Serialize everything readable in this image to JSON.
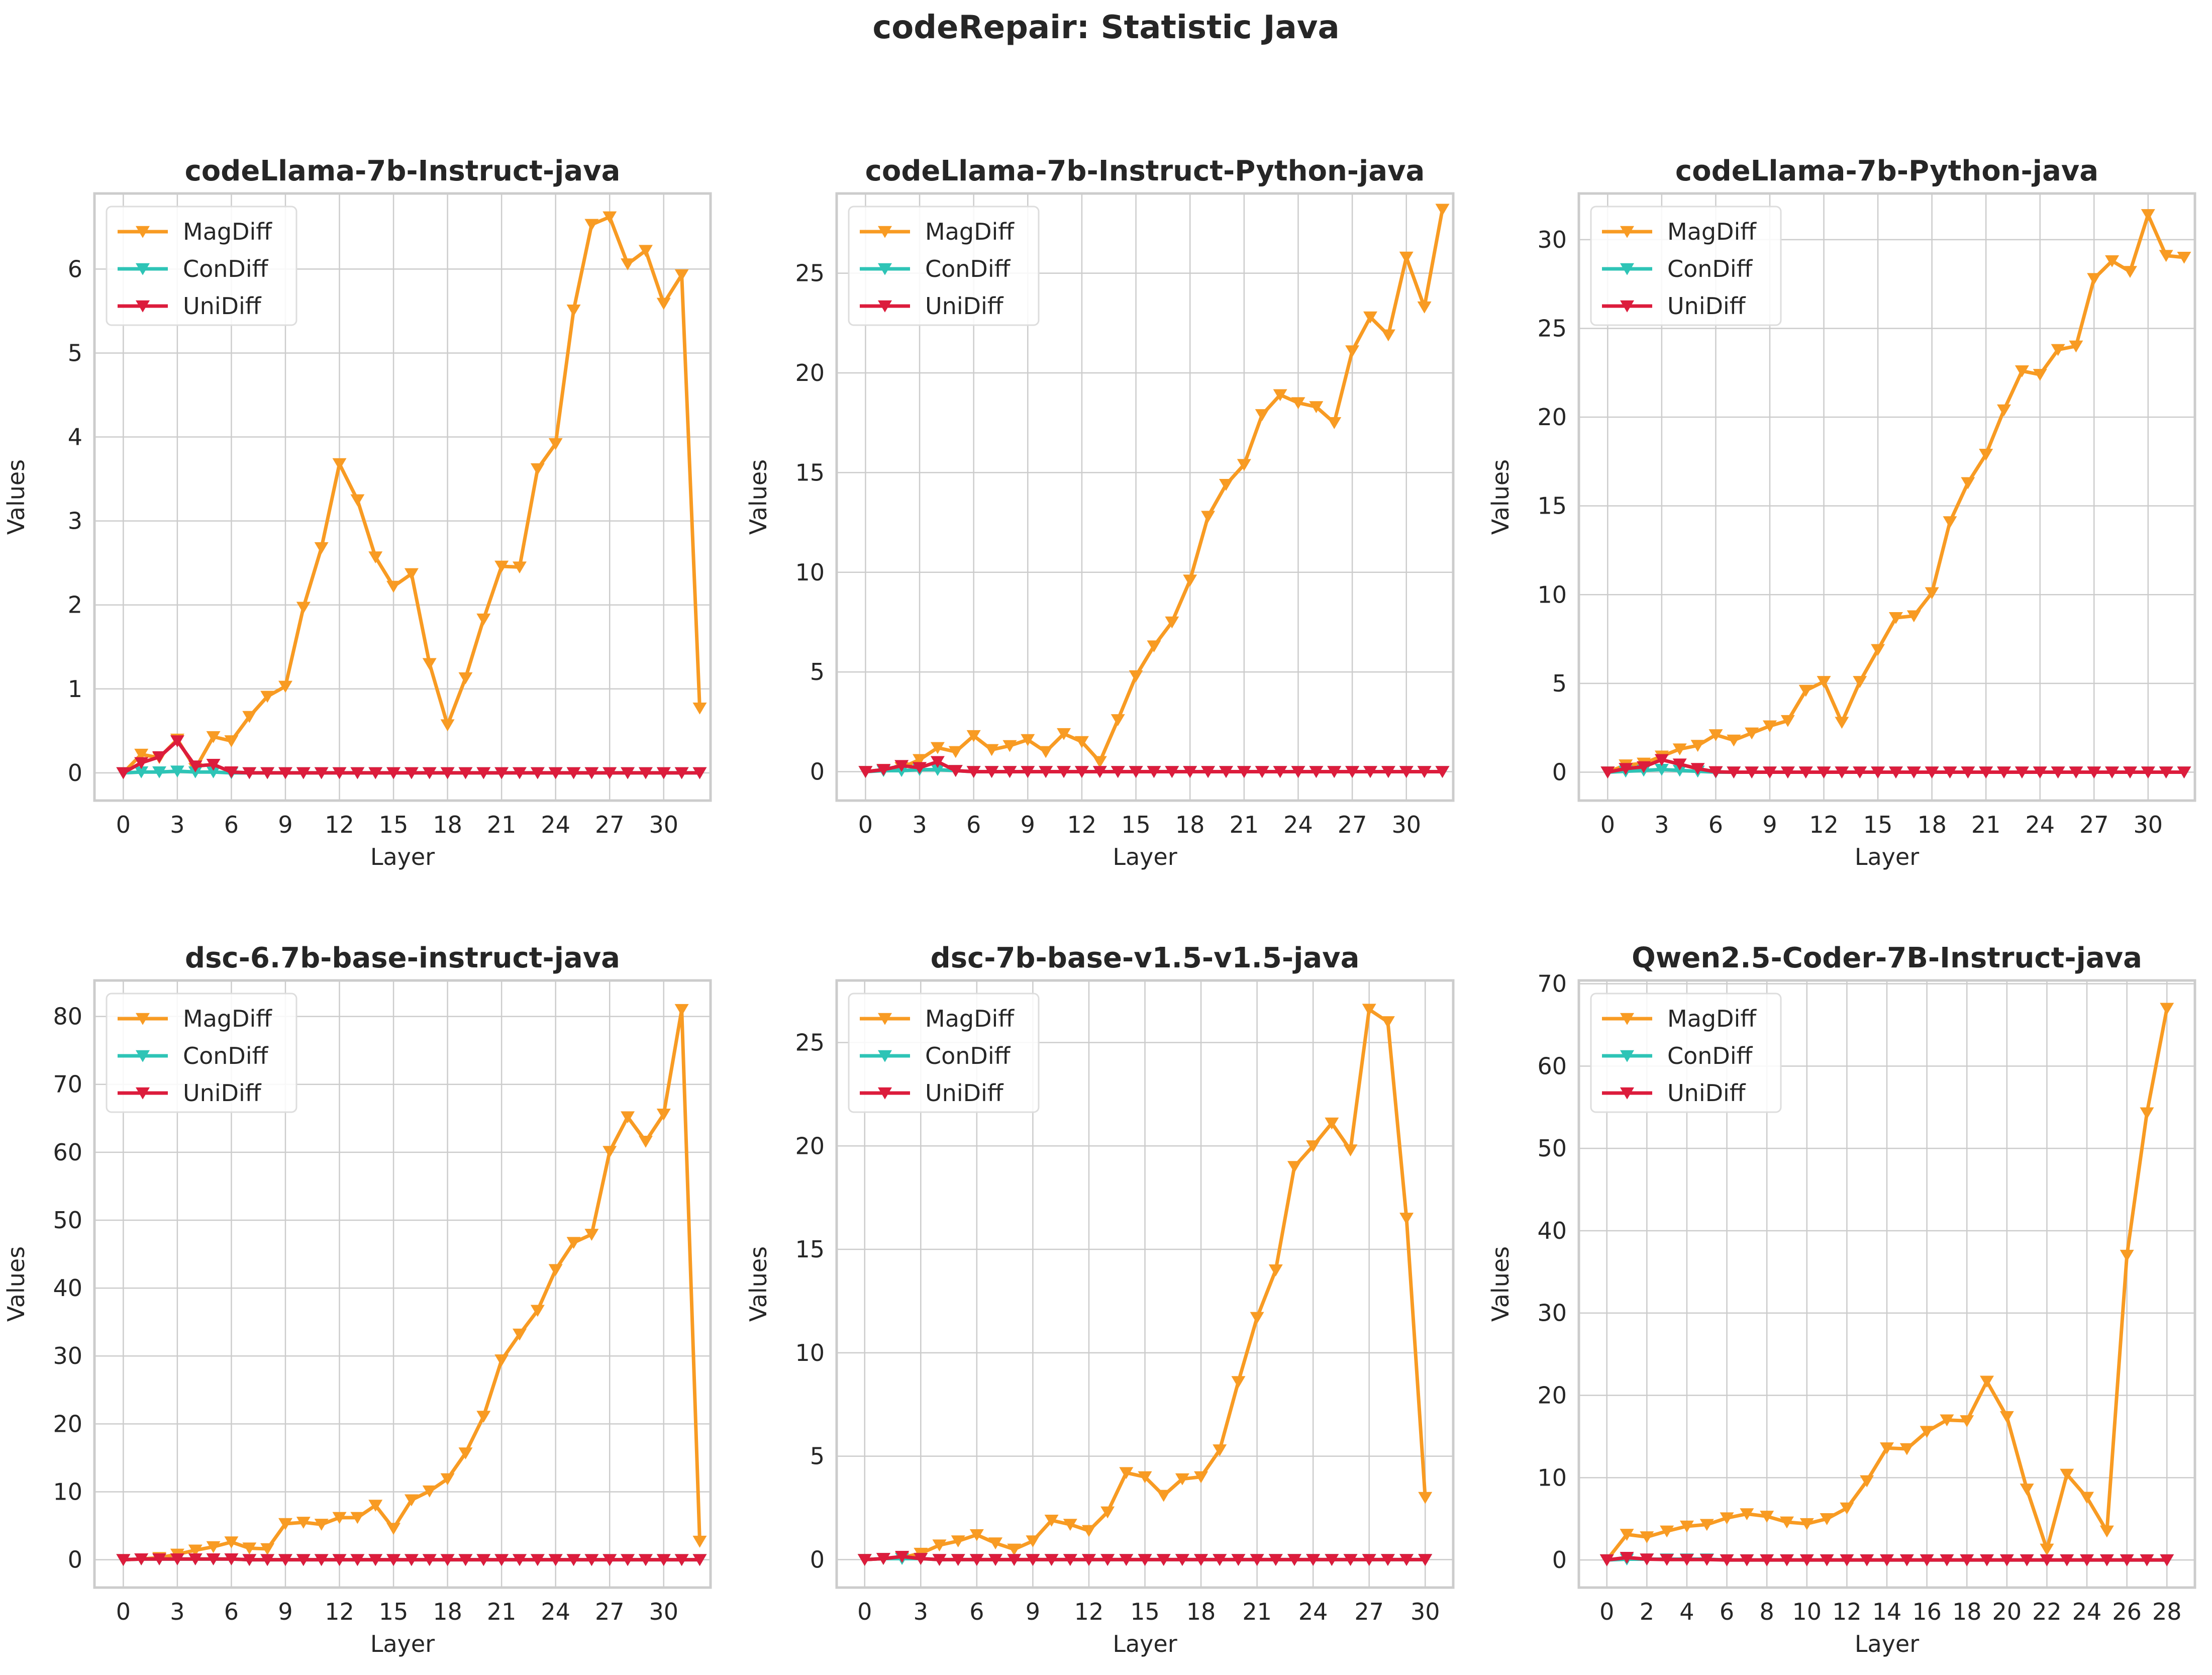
{
  "figure": {
    "title": "codeRepair: Statistic Java"
  },
  "colors": {
    "MagDiff": "#f89b23",
    "ConDiff": "#2ec4b6",
    "UniDiff": "#dc1c3c",
    "grid": "#cccccc",
    "text": "#262626"
  },
  "chart_data": [
    {
      "type": "line",
      "title": "codeLlama-7b-Instruct-java",
      "xlabel": "Layer",
      "ylabel": "Values",
      "xlim": [
        -1.6,
        32.6
      ],
      "ylim": [
        -0.33,
        6.9
      ],
      "xticks": [
        0,
        3,
        6,
        9,
        12,
        15,
        18,
        21,
        24,
        27,
        30
      ],
      "yticks": [
        0,
        1,
        2,
        3,
        4,
        5,
        6
      ],
      "legend": "upper-left",
      "grid": true,
      "series": [
        {
          "name": "MagDiff",
          "values": [
            0,
            0.22,
            0.18,
            0.4,
            0.05,
            0.43,
            0.38,
            0.67,
            0.91,
            1.03,
            1.97,
            2.68,
            3.68,
            3.25,
            2.57,
            2.22,
            2.37,
            1.3,
            0.57,
            1.13,
            1.83,
            2.46,
            2.45,
            3.62,
            3.92,
            5.51,
            6.53,
            6.62,
            6.06,
            6.22,
            5.59,
            5.93,
            0.77
          ]
        },
        {
          "name": "ConDiff",
          "values": [
            0,
            0.01,
            0.01,
            0.02,
            0.01,
            0.01,
            0,
            0,
            0,
            0,
            0,
            0,
            0,
            0,
            0,
            0,
            0,
            0,
            0,
            0,
            0,
            0,
            0,
            0,
            0,
            0,
            0,
            0,
            0,
            0,
            0,
            0,
            0
          ]
        },
        {
          "name": "UniDiff",
          "values": [
            0,
            0.12,
            0.19,
            0.38,
            0.08,
            0.1,
            0.01,
            0,
            0,
            0,
            0,
            0,
            0,
            0,
            0,
            0,
            0,
            0,
            0,
            0,
            0,
            0,
            0,
            0,
            0,
            0,
            0,
            0,
            0,
            0,
            0,
            0,
            0
          ]
        }
      ]
    },
    {
      "type": "line",
      "title": "codeLlama-7b-Instruct-Python-java",
      "xlabel": "Layer",
      "ylabel": "Values",
      "xlim": [
        -1.6,
        32.6
      ],
      "ylim": [
        -1.45,
        29.0
      ],
      "xticks": [
        0,
        3,
        6,
        9,
        12,
        15,
        18,
        21,
        24,
        27,
        30
      ],
      "yticks": [
        0,
        5,
        10,
        15,
        20,
        25
      ],
      "legend": "upper-left",
      "grid": true,
      "series": [
        {
          "name": "MagDiff",
          "values": [
            0,
            0.1,
            0.2,
            0.6,
            1.2,
            1.0,
            1.8,
            1.1,
            1.3,
            1.6,
            1.0,
            1.9,
            1.5,
            0.5,
            2.6,
            4.8,
            6.3,
            7.5,
            9.6,
            12.8,
            14.4,
            15.4,
            17.9,
            18.9,
            18.5,
            18.3,
            17.5,
            21.1,
            22.8,
            21.9,
            25.8,
            23.3,
            28.2
          ]
        },
        {
          "name": "ConDiff",
          "values": [
            0,
            0.05,
            0.05,
            0.1,
            0.1,
            0.05,
            0,
            0,
            0,
            0,
            0,
            0,
            0,
            0,
            0,
            0,
            0,
            0,
            0,
            0,
            0,
            0,
            0,
            0,
            0,
            0,
            0,
            0,
            0,
            0,
            0,
            0,
            0
          ]
        },
        {
          "name": "UniDiff",
          "values": [
            0,
            0.1,
            0.3,
            0.2,
            0.5,
            0.05,
            0,
            0,
            0,
            0,
            0,
            0,
            0,
            0,
            0,
            0,
            0,
            0,
            0,
            0,
            0,
            0,
            0,
            0,
            0,
            0,
            0,
            0,
            0,
            0,
            0,
            0,
            0
          ]
        }
      ]
    },
    {
      "type": "line",
      "title": "codeLlama-7b-Python-java",
      "xlabel": "Layer",
      "ylabel": "Values",
      "xlim": [
        -1.6,
        32.6
      ],
      "ylim": [
        -1.6,
        32.6
      ],
      "xticks": [
        0,
        3,
        6,
        9,
        12,
        15,
        18,
        21,
        24,
        27,
        30
      ],
      "yticks": [
        0,
        5,
        10,
        15,
        20,
        25,
        30
      ],
      "legend": "upper-left",
      "grid": true,
      "series": [
        {
          "name": "MagDiff",
          "values": [
            0,
            0.4,
            0.5,
            0.9,
            1.3,
            1.5,
            2.1,
            1.8,
            2.2,
            2.6,
            2.9,
            4.6,
            5.1,
            2.8,
            5.1,
            6.9,
            8.7,
            8.8,
            10.1,
            14.1,
            16.3,
            17.9,
            20.4,
            22.6,
            22.4,
            23.8,
            24.0,
            27.8,
            28.8,
            28.2,
            31.4,
            29.1,
            29.0
          ]
        },
        {
          "name": "ConDiff",
          "values": [
            0,
            0.05,
            0.1,
            0.15,
            0.1,
            0.05,
            0,
            0,
            0,
            0,
            0,
            0,
            0,
            0,
            0,
            0,
            0,
            0,
            0,
            0,
            0,
            0,
            0,
            0,
            0,
            0,
            0,
            0,
            0,
            0,
            0,
            0,
            0
          ]
        },
        {
          "name": "UniDiff",
          "values": [
            0,
            0.2,
            0.3,
            0.7,
            0.45,
            0.2,
            0.02,
            0,
            0,
            0,
            0,
            0,
            0,
            0,
            0,
            0,
            0,
            0,
            0,
            0,
            0,
            0,
            0,
            0,
            0,
            0,
            0,
            0,
            0,
            0,
            0,
            0,
            0
          ]
        }
      ]
    },
    {
      "type": "line",
      "title": "dsc-6.7b-base-instruct-java",
      "xlabel": "Layer",
      "ylabel": "Values",
      "xlim": [
        -1.6,
        32.6
      ],
      "ylim": [
        -4.1,
        85.3
      ],
      "xticks": [
        0,
        3,
        6,
        9,
        12,
        15,
        18,
        21,
        24,
        27,
        30
      ],
      "yticks": [
        0,
        10,
        20,
        30,
        40,
        50,
        60,
        70,
        80
      ],
      "legend": "upper-left",
      "grid": true,
      "series": [
        {
          "name": "MagDiff",
          "values": [
            0,
            0.1,
            0.3,
            0.8,
            1.4,
            1.9,
            2.6,
            1.7,
            1.6,
            5.3,
            5.5,
            5.2,
            6.2,
            6.2,
            8.0,
            4.6,
            8.8,
            10.1,
            11.9,
            15.7,
            21.1,
            29.4,
            33.2,
            36.7,
            42.7,
            46.7,
            47.9,
            60.1,
            65.2,
            61.6,
            65.6,
            81.0,
            2.7
          ]
        },
        {
          "name": "ConDiff",
          "values": [
            0,
            0.1,
            0.1,
            0.1,
            0.1,
            0.1,
            0.1,
            0,
            0,
            0,
            0,
            0,
            0,
            0,
            0,
            0,
            0,
            0,
            0,
            0,
            0,
            0,
            0,
            0,
            0,
            0,
            0,
            0,
            0,
            0,
            0,
            0,
            0
          ]
        },
        {
          "name": "UniDiff",
          "values": [
            0,
            0.1,
            0.1,
            0.1,
            0.1,
            0.1,
            0.1,
            0,
            0,
            0,
            0,
            0,
            0,
            0,
            0,
            0,
            0,
            0,
            0,
            0,
            0,
            0,
            0,
            0,
            0,
            0,
            0,
            0,
            0,
            0,
            0,
            0,
            0
          ]
        }
      ]
    },
    {
      "type": "line",
      "title": "dsc-7b-base-v1.5-v1.5-java",
      "xlabel": "Layer",
      "ylabel": "Values",
      "xlim": [
        -1.5,
        31.5
      ],
      "ylim": [
        -1.35,
        28.0
      ],
      "xticks": [
        0,
        3,
        6,
        9,
        12,
        15,
        18,
        21,
        24,
        27,
        30
      ],
      "yticks": [
        0,
        5,
        10,
        15,
        20,
        25
      ],
      "legend": "upper-left",
      "grid": true,
      "series": [
        {
          "name": "MagDiff",
          "values": [
            0,
            0.05,
            0.1,
            0.3,
            0.7,
            0.9,
            1.2,
            0.8,
            0.5,
            0.9,
            1.9,
            1.7,
            1.4,
            2.3,
            4.2,
            4.0,
            3.1,
            3.9,
            4.0,
            5.3,
            8.6,
            11.7,
            14.0,
            19.0,
            20.0,
            21.1,
            19.8,
            26.6,
            26.0,
            16.5,
            3.0
          ]
        },
        {
          "name": "ConDiff",
          "values": [
            0,
            0.05,
            0.05,
            0.05,
            0,
            0,
            0,
            0,
            0,
            0,
            0,
            0,
            0,
            0,
            0,
            0,
            0,
            0,
            0,
            0,
            0,
            0,
            0,
            0,
            0,
            0,
            0,
            0,
            0,
            0,
            0
          ]
        },
        {
          "name": "UniDiff",
          "values": [
            0,
            0.05,
            0.15,
            0.05,
            0,
            0,
            0,
            0,
            0,
            0,
            0,
            0,
            0,
            0,
            0,
            0,
            0,
            0,
            0,
            0,
            0,
            0,
            0,
            0,
            0,
            0,
            0,
            0,
            0,
            0,
            0
          ]
        }
      ]
    },
    {
      "type": "line",
      "title": "Qwen2.5-Coder-7B-Instruct-java",
      "xlabel": "Layer",
      "ylabel": "Values",
      "xlim": [
        -1.4,
        29.4
      ],
      "ylim": [
        -3.35,
        70.4
      ],
      "xticks": [
        0,
        2,
        4,
        6,
        8,
        10,
        12,
        14,
        16,
        18,
        20,
        22,
        24,
        26,
        28
      ],
      "yticks": [
        0,
        10,
        20,
        30,
        40,
        50,
        60,
        70
      ],
      "legend": "upper-left",
      "grid": true,
      "series": [
        {
          "name": "MagDiff",
          "values": [
            0,
            3.1,
            2.8,
            3.5,
            4.1,
            4.3,
            5.1,
            5.6,
            5.3,
            4.6,
            4.4,
            5.0,
            6.3,
            9.6,
            13.6,
            13.5,
            15.6,
            17.0,
            16.9,
            21.7,
            17.4,
            8.6,
            1.3,
            10.4,
            7.6,
            3.5,
            37.0,
            54.3,
            67.0
          ]
        },
        {
          "name": "ConDiff",
          "values": [
            0,
            0.1,
            0.1,
            0.1,
            0.1,
            0.1,
            0,
            0,
            0,
            0,
            0,
            0,
            0,
            0,
            0,
            0,
            0,
            0,
            0,
            0,
            0,
            0,
            0,
            0,
            0,
            0,
            0,
            0,
            0
          ]
        },
        {
          "name": "UniDiff",
          "values": [
            0,
            0.3,
            0.1,
            0.05,
            0.05,
            0.05,
            0,
            0,
            0,
            0,
            0,
            0,
            0,
            0,
            0,
            0,
            0,
            0,
            0,
            0,
            0,
            0,
            0,
            0,
            0,
            0,
            0,
            0,
            0
          ]
        }
      ]
    }
  ]
}
